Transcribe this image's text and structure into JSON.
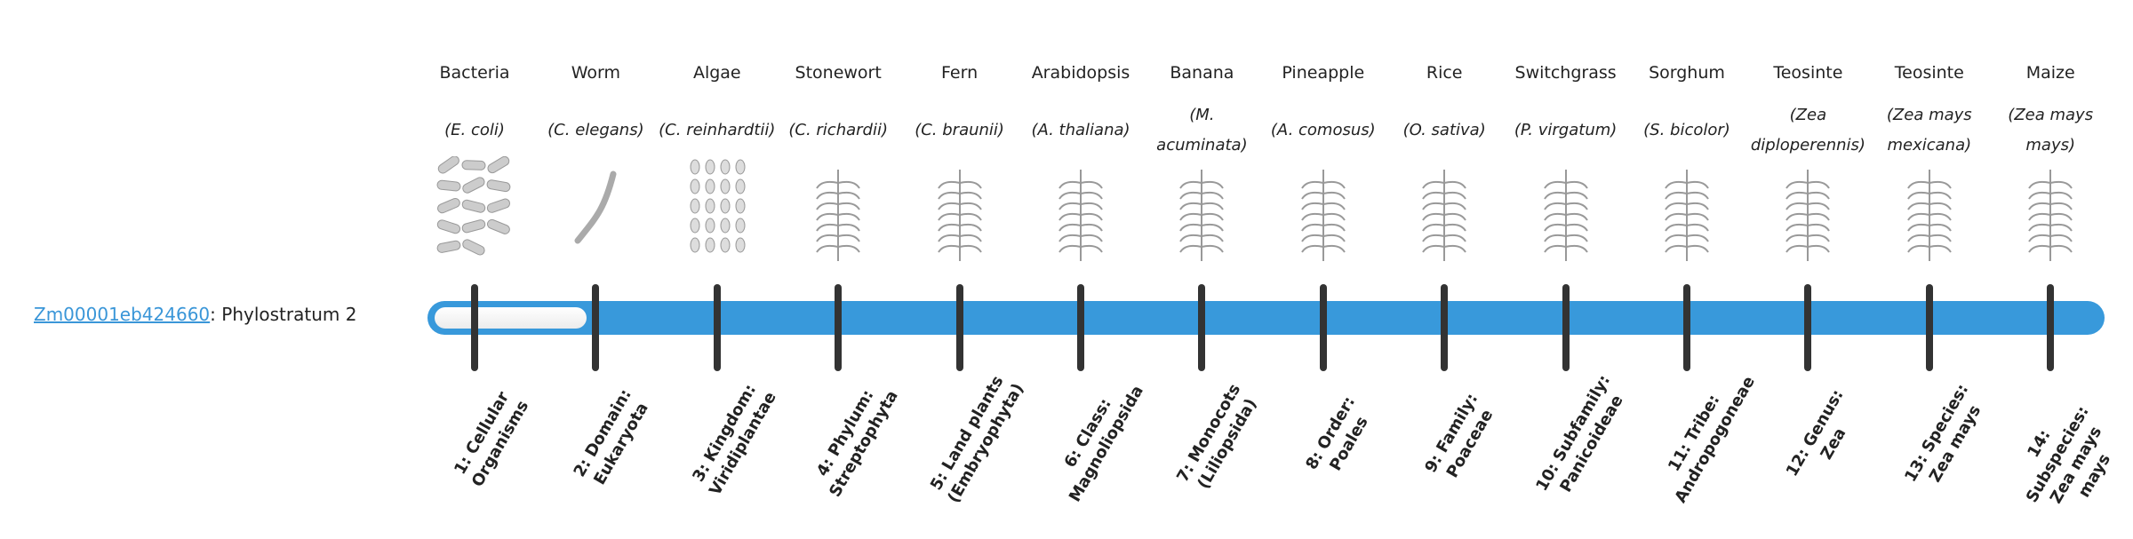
{
  "gene": {
    "id": "Zm00001eb424660",
    "separator": ":",
    "label": "Phylostratum 2"
  },
  "progress": {
    "phylostratum": 2,
    "total": 14,
    "colors": {
      "bar": "#3899db",
      "empty": "#f4f4f4",
      "tick": "#333333"
    }
  },
  "organisms": [
    {
      "name": "Bacteria",
      "species": "(E. coli)",
      "icon": "bacteria-illustration"
    },
    {
      "name": "Worm",
      "species": "(C. elegans)",
      "icon": "worm-illustration"
    },
    {
      "name": "Algae",
      "species": "(C. reinhardtii)",
      "icon": "algae-illustration"
    },
    {
      "name": "Stonewort",
      "species": "(C. richardii)",
      "icon": "stonewort-illustration"
    },
    {
      "name": "Fern",
      "species": "(C. braunii)",
      "icon": "fern-illustration"
    },
    {
      "name": "Arabidopsis",
      "species": "(A. thaliana)",
      "icon": "arabidopsis-illustration"
    },
    {
      "name": "Banana",
      "species": "(M. acuminata)",
      "icon": "banana-illustration"
    },
    {
      "name": "Pineapple",
      "species": "(A. comosus)",
      "icon": "pineapple-illustration"
    },
    {
      "name": "Rice",
      "species": "(O. sativa)",
      "icon": "rice-illustration"
    },
    {
      "name": "Switchgrass",
      "species": "(P. virgatum)",
      "icon": "switchgrass-illustration"
    },
    {
      "name": "Sorghum",
      "species": "(S. bicolor)",
      "icon": "sorghum-illustration"
    },
    {
      "name": "Teosinte",
      "species": "(Zea diploperennis)",
      "icon": "teosinte-illustration"
    },
    {
      "name": "Teosinte",
      "species": "(Zea mays mexicana)",
      "icon": "teosinte-illustration"
    },
    {
      "name": "Maize",
      "species": "(Zea mays mays)",
      "icon": "maize-illustration"
    }
  ],
  "strata": [
    "1: Cellular Organisms",
    "2: Domain: Eukaryota",
    "3: Kingdom: Viridiplantae",
    "4: Phylum: Streptophyta",
    "5: Land plants (Embryophyta)",
    "6: Class: Magnoliopsida",
    "7: Monocots (Liliopsida)",
    "8: Order: Poales",
    "9: Family: Poaceae",
    "10: Subfamily: Panicoideae",
    "11: Tribe: Andropogoneae",
    "12: Genus: Zea",
    "13: Species: Zea mays",
    "14: Subspecies: Zea mays mays"
  ]
}
